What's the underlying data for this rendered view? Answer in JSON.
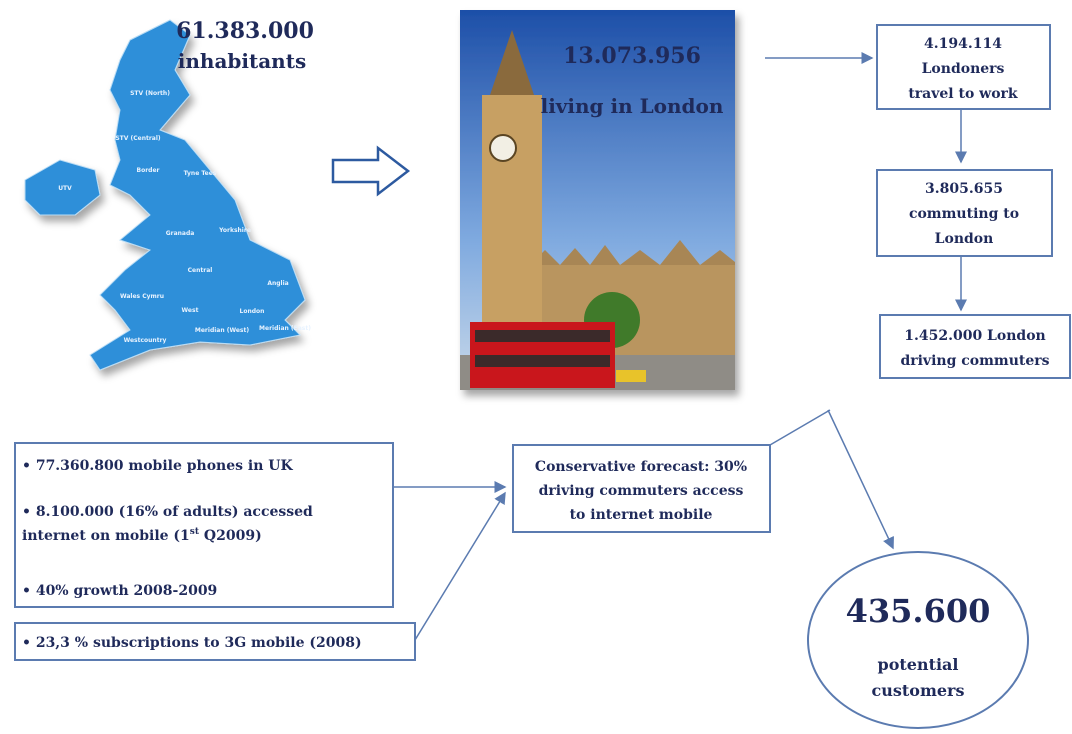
{
  "map": {
    "number": "61.383.000",
    "caption": "inhabitants",
    "regions": [
      "STV (North)",
      "STV (Central)",
      "UTV",
      "Border",
      "Tyne Tees",
      "Granada",
      "Yorkshire",
      "Central",
      "Anglia",
      "Wales Cymru",
      "West",
      "London",
      "Meridian (West)",
      "Meridian (East)",
      "Westcountry"
    ]
  },
  "photo": {
    "number": "13.073.956",
    "caption": "living in London"
  },
  "flow": [
    [
      "4.194.114",
      "Londoners",
      "travel to work"
    ],
    [
      "3.805.655",
      "commuting to",
      "London"
    ],
    [
      "1.452.000 London",
      "driving commuters"
    ]
  ],
  "facts": {
    "bullets": [
      [
        "• 77.360.800 mobile phones in UK"
      ],
      [
        "• 8.100.000 (16% of adults) accessed",
        "internet on mobile (1",
        "st",
        " Q2009)"
      ],
      [
        "• 40% growth 2008-2009"
      ]
    ],
    "extra": "• 23,3 % subscriptions to 3G mobile (2008)"
  },
  "forecast": [
    "Conservative forecast: 30%",
    "driving commuters access",
    "to internet mobile"
  ],
  "result": {
    "number": "435.600",
    "lines": [
      "potential",
      "customers"
    ]
  }
}
